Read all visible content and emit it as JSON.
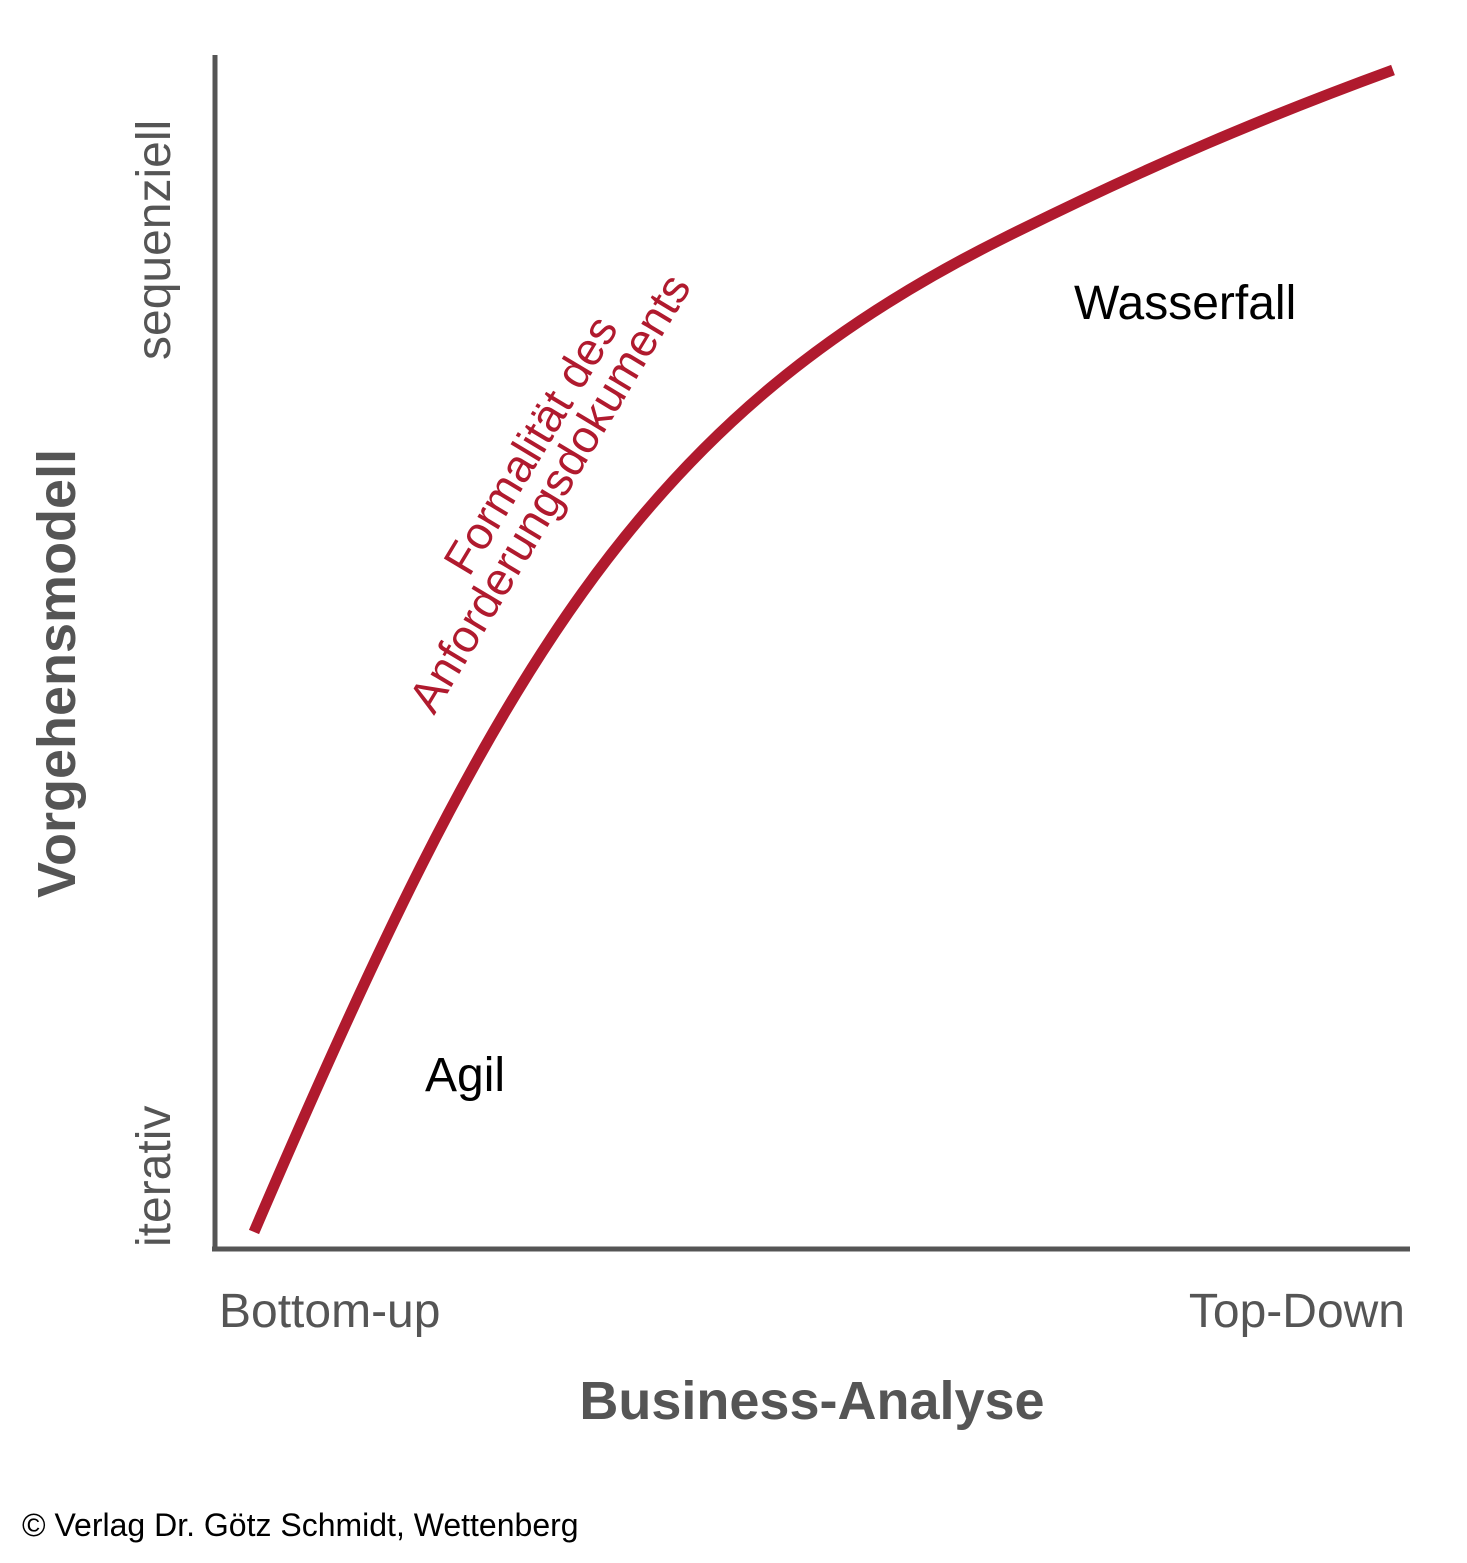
{
  "axes": {
    "x_title": "Business-Analyse",
    "y_title": "Vorgehensmodell",
    "x_low": "Bottom-up",
    "x_high": "Top-Down",
    "y_low": "iterativ",
    "y_high": "sequenziell"
  },
  "curve": {
    "label_line1": "Formalität des",
    "label_line2": "Anforderungsdokuments",
    "color": "#b01a2e"
  },
  "regions": {
    "low": "Agil",
    "high": "Wasserfall"
  },
  "footer": {
    "copyright": "© Verlag Dr. Götz Schmidt, Wettenberg"
  },
  "colors": {
    "axis": "#555555",
    "text": "#000000"
  }
}
